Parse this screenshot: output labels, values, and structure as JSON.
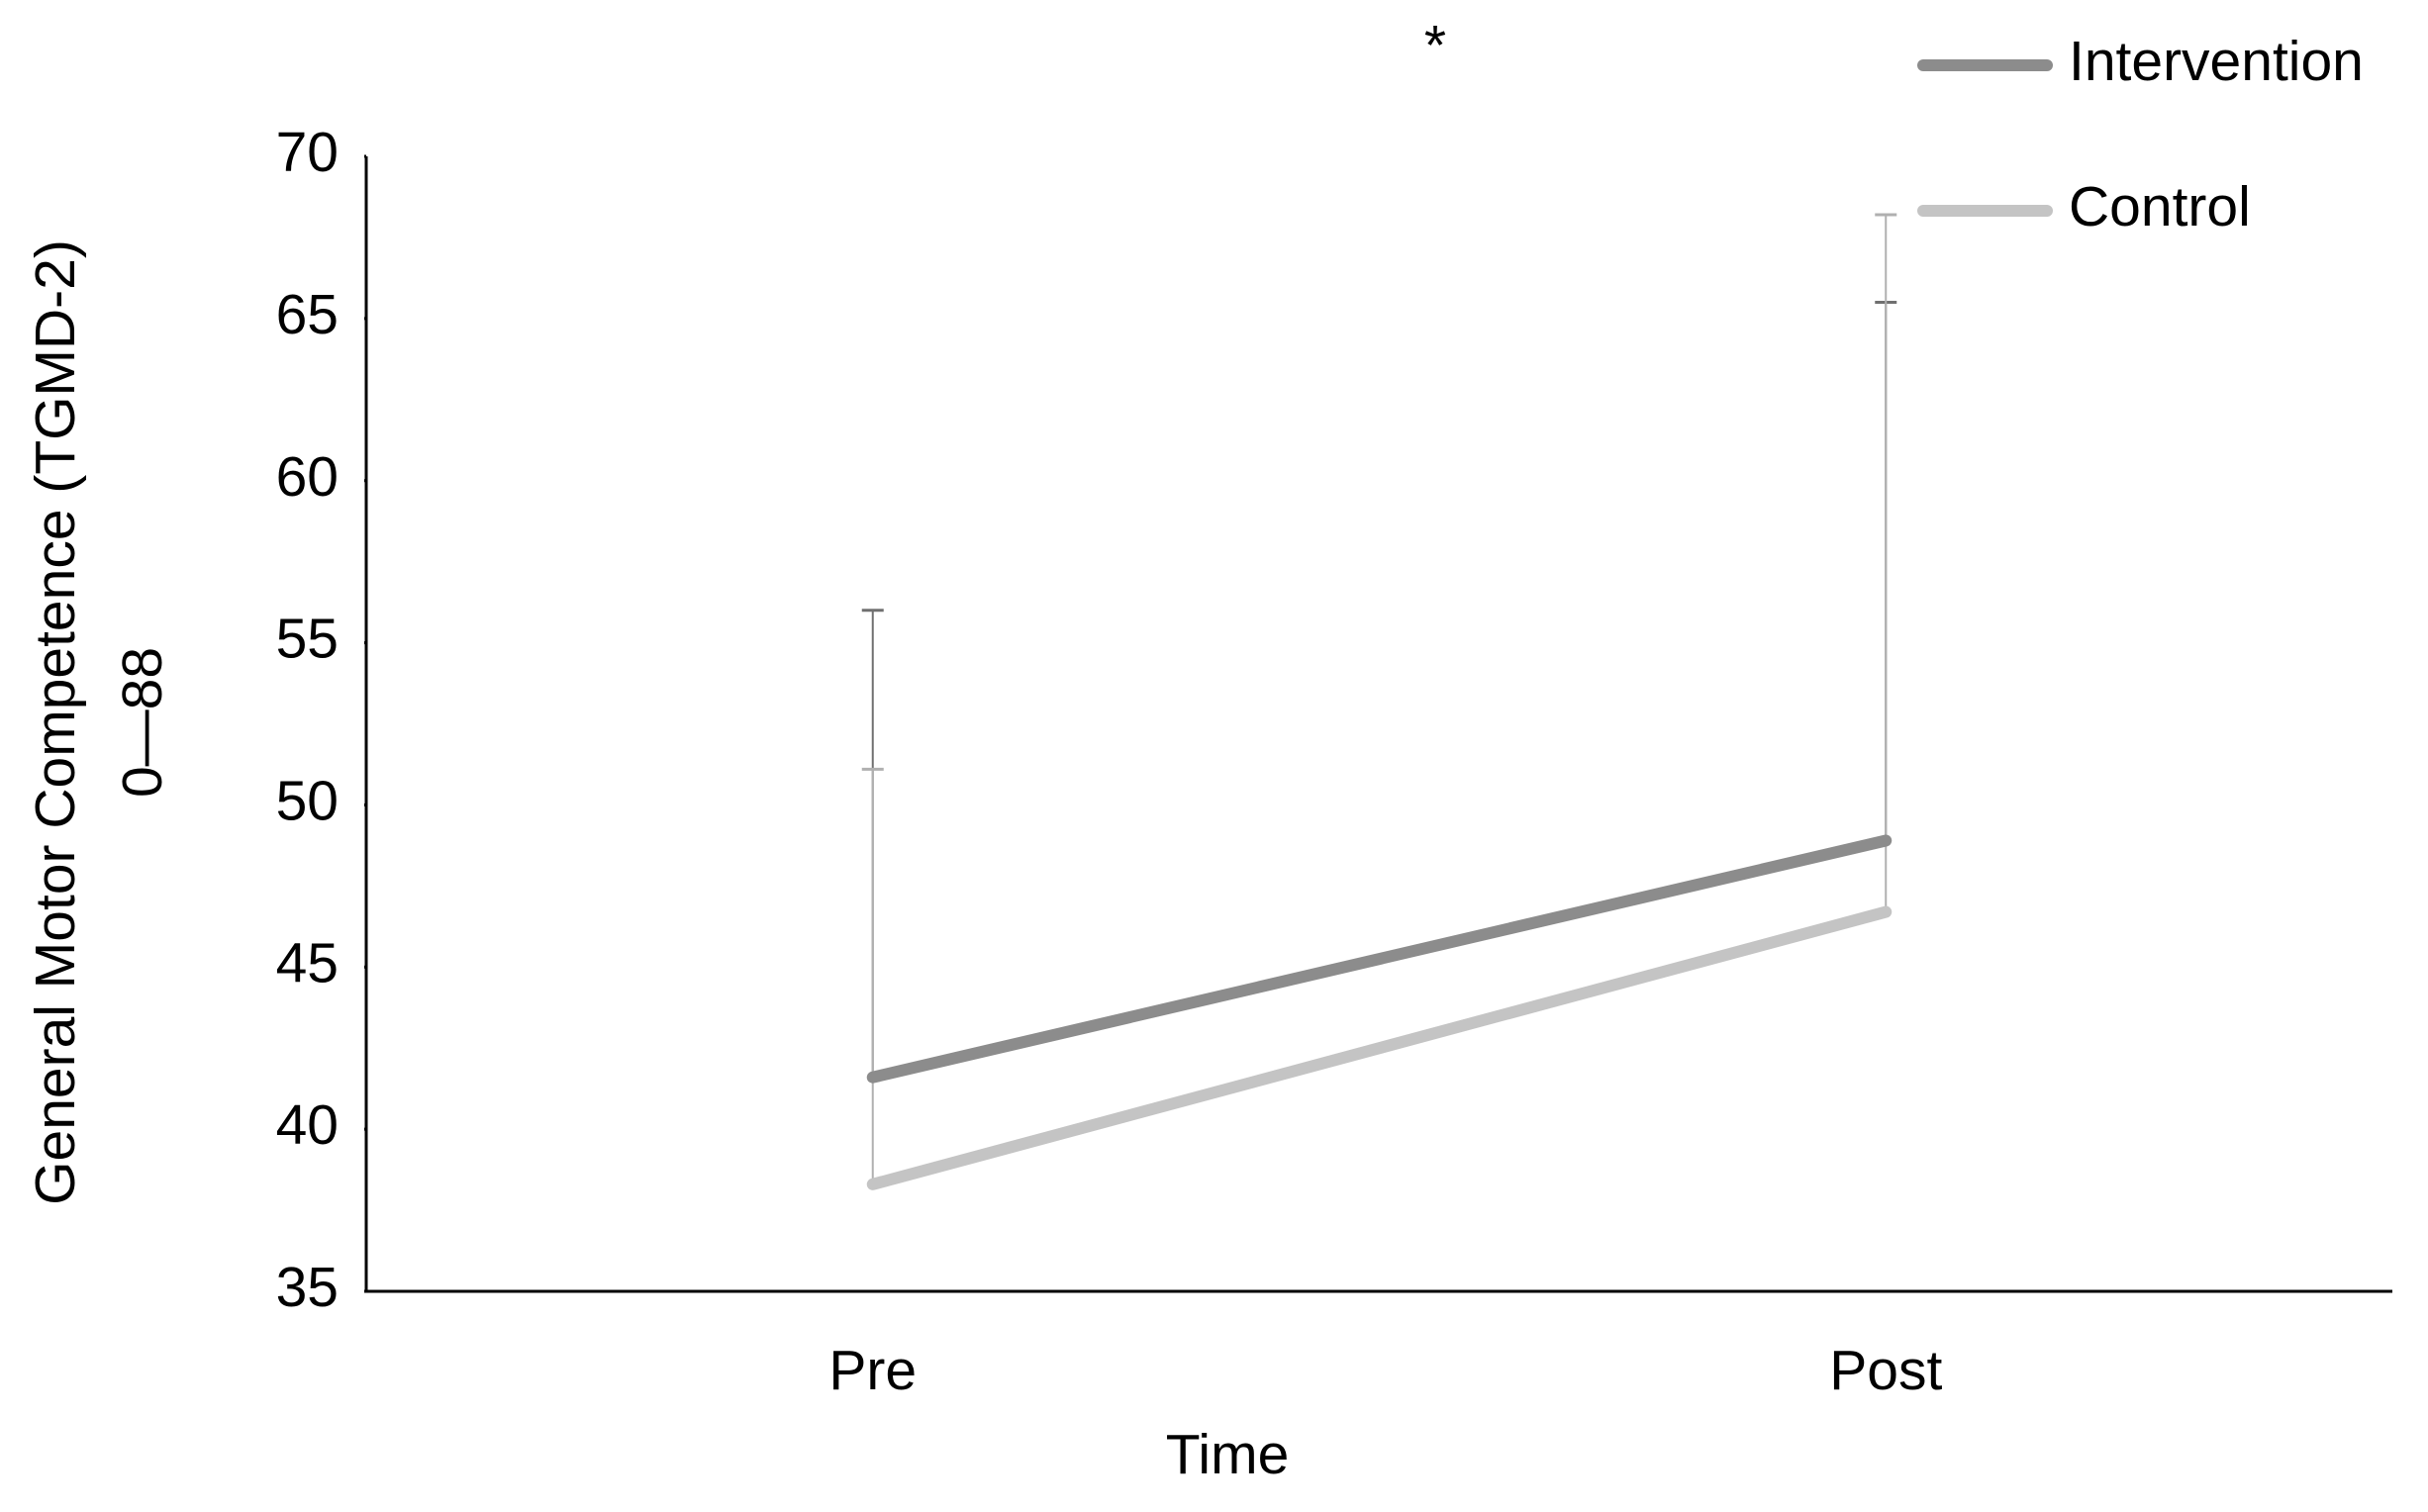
{
  "chart_data": {
    "type": "line",
    "annotation": "*",
    "x_label": "Time",
    "y_label": [
      "General Motor Competence (TGMD-2)",
      "0—88"
    ],
    "categories": [
      "Pre",
      "Post"
    ],
    "series": [
      {
        "name": "Intervention",
        "color": "#8c8c8c",
        "values": [
          41.6,
          48.9
        ],
        "errors": [
          14.4,
          16.6
        ]
      },
      {
        "name": "Control",
        "color": "#c4c4c4",
        "values": [
          38.3,
          46.7
        ],
        "errors": [
          12.8,
          21.5
        ]
      }
    ],
    "ylim": [
      35,
      70
    ],
    "yticks": [
      35,
      40,
      45,
      50,
      55,
      60,
      65,
      70
    ],
    "legend": "top-right"
  }
}
